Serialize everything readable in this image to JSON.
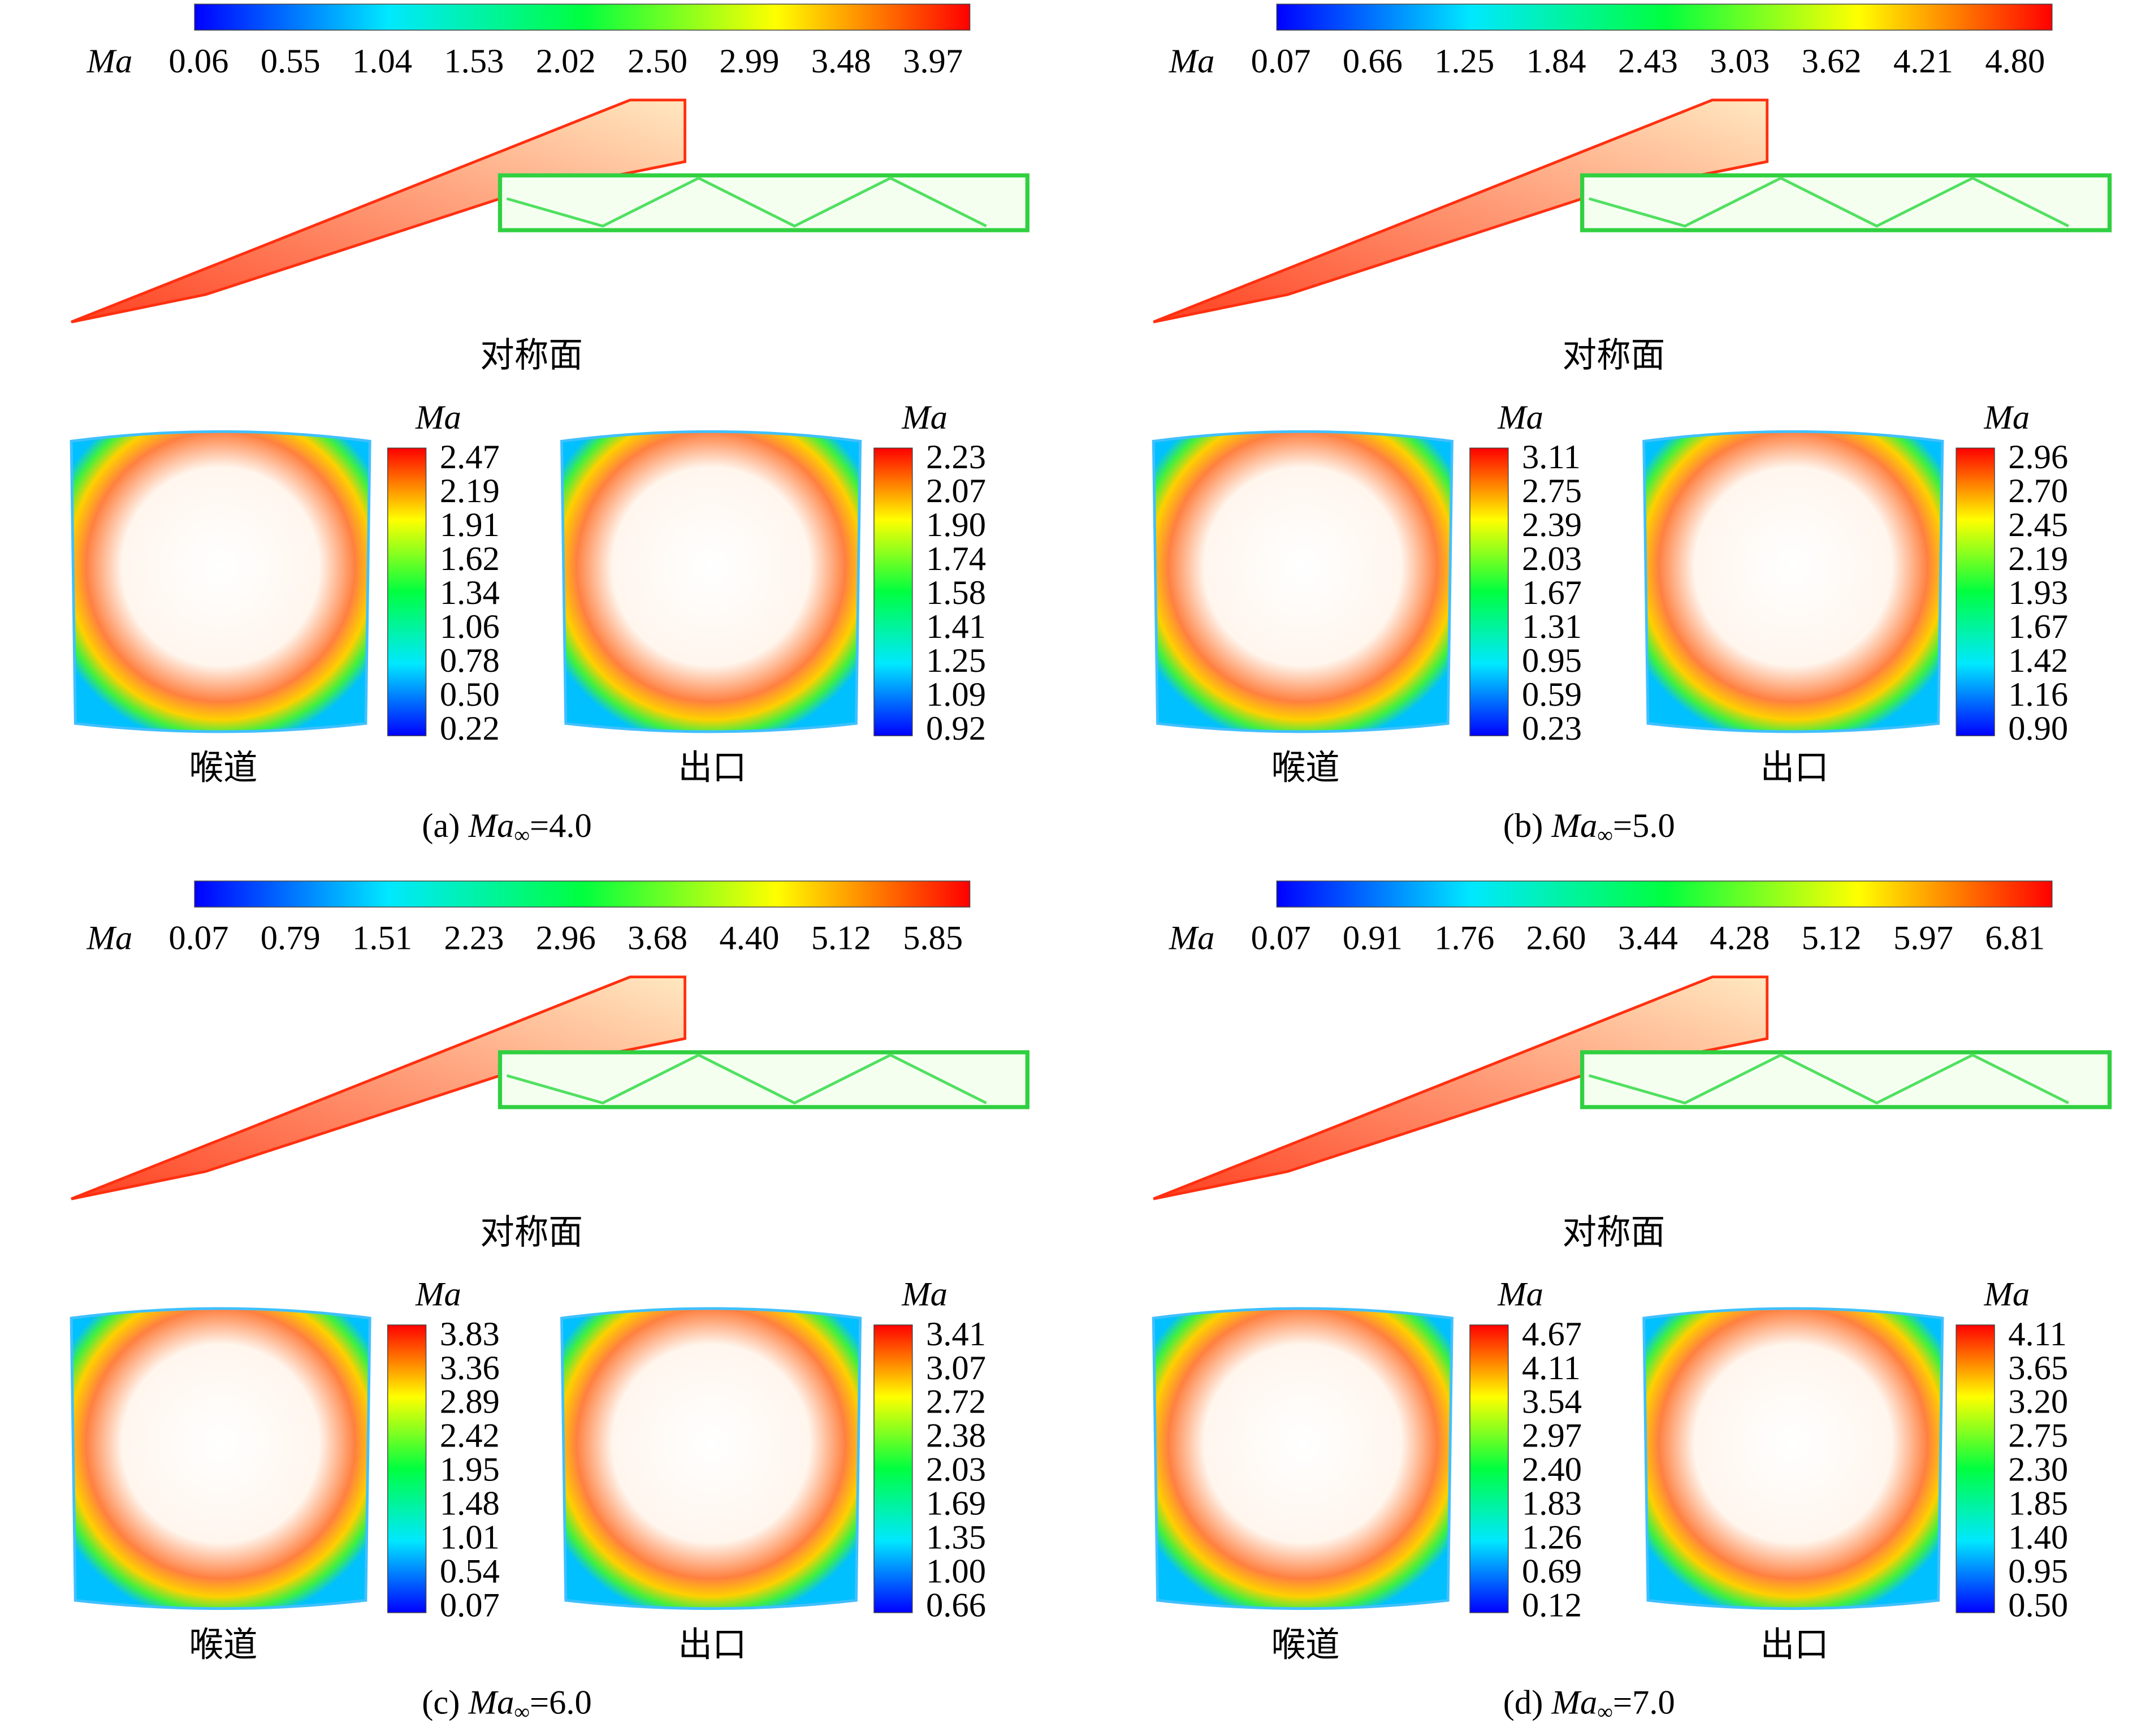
{
  "panels": [
    {
      "caption": {
        "prefix": "(a) ",
        "symbol": "Ma",
        "subscript": "∞",
        "suffix": "=4.0"
      },
      "colorbar": {
        "label": "Ma",
        "ticks": [
          "0.06",
          "0.55",
          "1.04",
          "1.53",
          "2.02",
          "2.50",
          "2.99",
          "3.48",
          "3.97"
        ]
      },
      "symmetry_label": "对称面",
      "throat": {
        "label": "喉道",
        "colorbar_label": "Ma",
        "ticks": [
          "2.47",
          "2.19",
          "1.91",
          "1.62",
          "1.34",
          "1.06",
          "0.78",
          "0.50",
          "0.22"
        ]
      },
      "exit": {
        "label": "出口",
        "colorbar_label": "Ma",
        "ticks": [
          "2.23",
          "2.07",
          "1.90",
          "1.74",
          "1.58",
          "1.41",
          "1.25",
          "1.09",
          "0.92"
        ]
      }
    },
    {
      "caption": {
        "prefix": "(b) ",
        "symbol": "Ma",
        "subscript": "∞",
        "suffix": "=5.0"
      },
      "colorbar": {
        "label": "Ma",
        "ticks": [
          "0.07",
          "0.66",
          "1.25",
          "1.84",
          "2.43",
          "3.03",
          "3.62",
          "4.21",
          "4.80"
        ]
      },
      "symmetry_label": "对称面",
      "throat": {
        "label": "喉道",
        "colorbar_label": "Ma",
        "ticks": [
          "3.11",
          "2.75",
          "2.39",
          "2.03",
          "1.67",
          "1.31",
          "0.95",
          "0.59",
          "0.23"
        ]
      },
      "exit": {
        "label": "出口",
        "colorbar_label": "Ma",
        "ticks": [
          "2.96",
          "2.70",
          "2.45",
          "2.19",
          "1.93",
          "1.67",
          "1.42",
          "1.16",
          "0.90"
        ]
      }
    },
    {
      "caption": {
        "prefix": "(c) ",
        "symbol": "Ma",
        "subscript": "∞",
        "suffix": "=6.0"
      },
      "colorbar": {
        "label": "Ma",
        "ticks": [
          "0.07",
          "0.79",
          "1.51",
          "2.23",
          "2.96",
          "3.68",
          "4.40",
          "5.12",
          "5.85"
        ]
      },
      "symmetry_label": "对称面",
      "throat": {
        "label": "喉道",
        "colorbar_label": "Ma",
        "ticks": [
          "3.83",
          "3.36",
          "2.89",
          "2.42",
          "1.95",
          "1.48",
          "1.01",
          "0.54",
          "0.07"
        ]
      },
      "exit": {
        "label": "出口",
        "colorbar_label": "Ma",
        "ticks": [
          "3.41",
          "3.07",
          "2.72",
          "2.38",
          "2.03",
          "1.69",
          "1.35",
          "1.00",
          "0.66"
        ]
      }
    },
    {
      "caption": {
        "prefix": "(d) ",
        "symbol": "Ma",
        "subscript": "∞",
        "suffix": "=7.0"
      },
      "colorbar": {
        "label": "Ma",
        "ticks": [
          "0.07",
          "0.91",
          "1.76",
          "2.60",
          "3.44",
          "4.28",
          "5.12",
          "5.97",
          "6.81"
        ]
      },
      "symmetry_label": "对称面",
      "throat": {
        "label": "喉道",
        "colorbar_label": "Ma",
        "ticks": [
          "4.67",
          "4.11",
          "3.54",
          "2.97",
          "2.40",
          "1.83",
          "1.26",
          "0.69",
          "0.12"
        ]
      },
      "exit": {
        "label": "出口",
        "colorbar_label": "Ma",
        "ticks": [
          "4.11",
          "3.65",
          "3.20",
          "2.75",
          "2.30",
          "1.85",
          "1.40",
          "0.95",
          "0.50"
        ]
      }
    }
  ]
}
